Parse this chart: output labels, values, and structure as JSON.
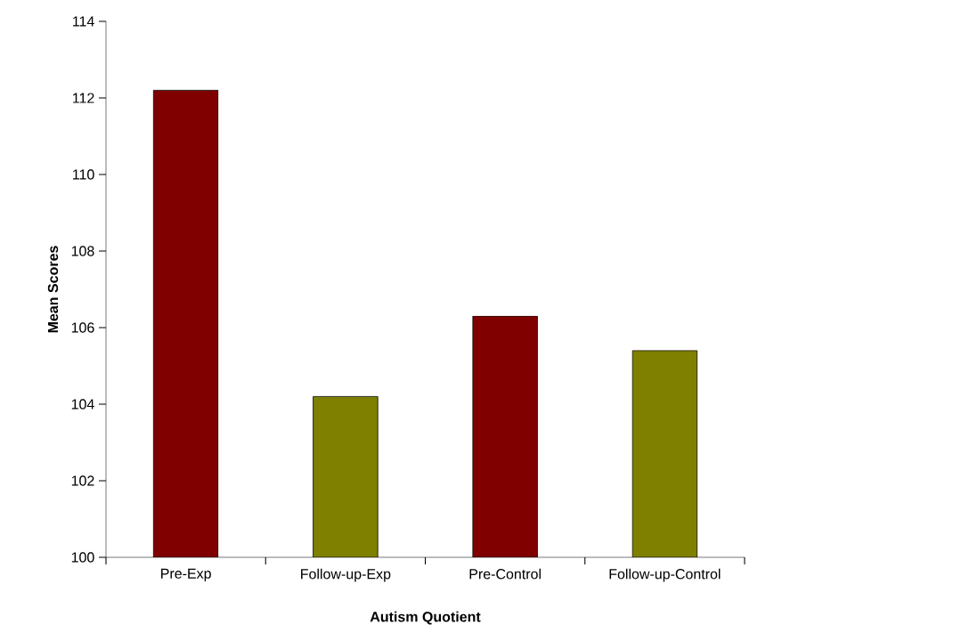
{
  "chart_data": {
    "type": "bar",
    "xlabel": "Autism Quotient",
    "ylabel": "Mean Scores",
    "categories": [
      "Pre-Exp",
      "Follow-up-Exp",
      "Pre-Control",
      "Follow-up-Control"
    ],
    "values": [
      112.2,
      104.2,
      106.3,
      105.4
    ],
    "colors": [
      "#800000",
      "#808000",
      "#800000",
      "#808000"
    ],
    "ylim": [
      100,
      114
    ],
    "yticks": [
      100,
      102,
      104,
      106,
      108,
      110,
      112,
      114
    ],
    "grid": false
  }
}
